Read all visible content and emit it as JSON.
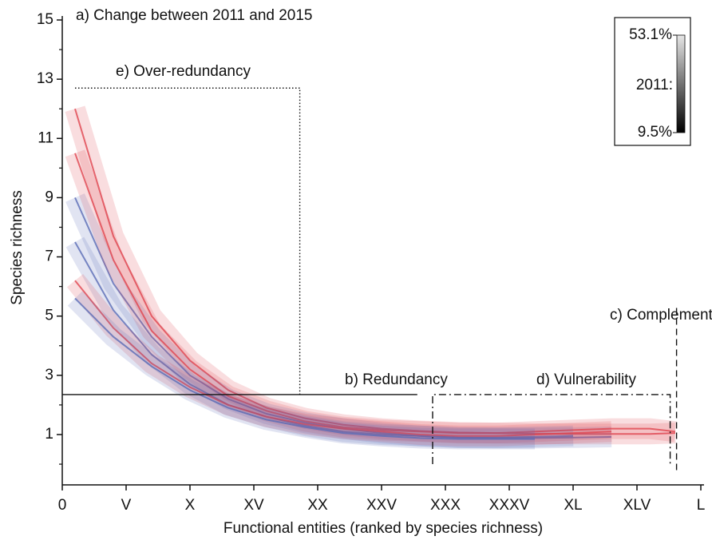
{
  "chart_data": {
    "type": "line",
    "title": "a) Change between 2011 and 2015",
    "x_label": "Functional entities (ranked by species richness)",
    "y_label": "Species richness",
    "x": [
      1,
      4,
      7,
      10,
      13,
      16,
      19,
      22,
      25,
      28,
      31,
      34,
      37,
      40,
      43,
      46,
      48
    ],
    "series": [
      {
        "color": "#e0454f",
        "values": [
          12,
          7.7,
          5.0,
          3.5,
          2.5,
          1.9,
          1.55,
          1.33,
          1.2,
          1.12,
          1.07,
          1.05,
          1.03,
          1.02,
          1.02,
          1.02,
          1.05
        ]
      },
      {
        "color": "#5a6bb5",
        "values": [
          9,
          6.1,
          4.3,
          3.0,
          2.2,
          1.7,
          1.4,
          1.2,
          1.05,
          0.95,
          0.9,
          0.88,
          0.88,
          0.9,
          0.92,
          null,
          null
        ]
      },
      {
        "color": "#e0454f",
        "values": [
          10.5,
          6.9,
          4.5,
          3.2,
          2.3,
          1.8,
          1.45,
          1.25,
          1.15,
          1.1,
          1.05,
          1.05,
          1.1,
          1.15,
          1.2,
          1.2,
          1.1
        ]
      },
      {
        "color": "#5a6bb5",
        "values": [
          7.5,
          5.2,
          3.7,
          2.7,
          2.0,
          1.6,
          1.3,
          1.1,
          1.0,
          0.95,
          0.9,
          0.9,
          0.92,
          0.95,
          null,
          null,
          null
        ]
      },
      {
        "color": "#e0454f",
        "values": [
          6.2,
          4.6,
          3.4,
          2.6,
          2.0,
          1.6,
          1.35,
          1.2,
          1.1,
          1.0,
          0.95,
          0.95,
          1.0,
          1.05,
          1.1,
          null,
          null
        ]
      },
      {
        "color": "#5a6bb5",
        "values": [
          5.6,
          4.3,
          3.3,
          2.5,
          1.9,
          1.5,
          1.25,
          1.05,
          0.95,
          0.88,
          0.85,
          0.85,
          0.85,
          null,
          null,
          null,
          null
        ]
      }
    ],
    "xlim": [
      0,
      50
    ],
    "xticks": [
      0,
      {
        "value": 5,
        "label": "V"
      },
      {
        "value": 10,
        "label": "X"
      },
      {
        "value": 15,
        "label": "XV"
      },
      {
        "value": 20,
        "label": "XX"
      },
      {
        "value": 25,
        "label": "XXV"
      },
      {
        "value": 30,
        "label": "XXX"
      },
      {
        "value": 35,
        "label": "XXXV"
      },
      {
        "value": 40,
        "label": "XL"
      },
      {
        "value": 45,
        "label": "XLV"
      },
      {
        "value": 50,
        "label": "L"
      }
    ],
    "ylim": [
      -0.7,
      15
    ],
    "yticks": [
      1,
      3,
      5,
      7,
      9,
      11,
      13,
      15
    ],
    "y_minor_ticks": [
      0,
      2,
      4,
      6,
      8,
      10,
      12,
      14
    ],
    "colorbar": {
      "label": "2011:",
      "clim": [
        9.5,
        53.1
      ],
      "ticks": [
        {
          "value": 9.5,
          "label": "9.5%"
        },
        {
          "value": 53.1,
          "label": "53.1%"
        }
      ]
    },
    "annotations": [
      {
        "text": "e) Over-redundancy",
        "line_style": "dotted",
        "x": [
          1,
          18.6
        ],
        "y": [
          2.35,
          12.7
        ]
      },
      {
        "text": "b) Redundancy",
        "line_style": "solid",
        "x": [
          0,
          27.8
        ],
        "y": 2.35
      },
      {
        "text": "d) Vulnerability",
        "line_style": "dashdot",
        "x": [
          29,
          47.6
        ],
        "y": [
          0,
          2.35
        ]
      },
      {
        "text": "c) Complementarity",
        "line_style": "dashed",
        "x": 48.1,
        "y": [
          -0.2,
          5.3
        ]
      }
    ]
  }
}
